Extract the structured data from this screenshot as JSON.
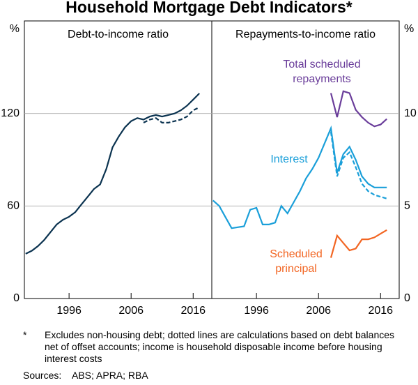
{
  "title": "Household Mortgage Debt Indicators*",
  "footnote": {
    "marker": "*",
    "text": "Excludes non-housing debt; dotted lines are calculations based on debt balances net of offset accounts; income is household disposable income before housing interest costs"
  },
  "sources": {
    "label": "Sources:",
    "text": "ABS; APRA; RBA"
  },
  "chart_data": [
    {
      "type": "line",
      "title": "Debt-to-income ratio",
      "y_unit": "%",
      "axis_side": "left",
      "x": [
        1989,
        1990,
        1991,
        1992,
        1993,
        1994,
        1995,
        1996,
        1997,
        1998,
        1999,
        2000,
        2001,
        2002,
        2003,
        2004,
        2005,
        2006,
        2007,
        2008,
        2009,
        2010,
        2011,
        2012,
        2013,
        2014,
        2015,
        2016,
        2017
      ],
      "xlim": [
        1988.8,
        2019
      ],
      "xticks": [
        1996,
        2006,
        2016
      ],
      "ylim": [
        0,
        180
      ],
      "yticks": [
        0,
        60,
        120
      ],
      "grid": true,
      "series": [
        {
          "color": "#0b3350",
          "dash": false,
          "values": [
            29,
            31,
            34,
            38,
            43,
            48,
            51,
            53,
            56,
            61,
            66,
            71,
            74,
            84,
            98,
            105,
            111,
            115,
            117,
            116,
            118,
            119,
            118,
            119,
            120,
            122,
            125,
            129,
            133
          ]
        },
        {
          "color": "#0b3350",
          "dash": true,
          "values": [
            null,
            null,
            null,
            null,
            null,
            null,
            null,
            null,
            null,
            null,
            null,
            null,
            null,
            null,
            null,
            null,
            null,
            null,
            null,
            114,
            116,
            117,
            114,
            114,
            115,
            116,
            118,
            122,
            124
          ]
        }
      ]
    },
    {
      "type": "line",
      "title": "Repayments-to-income ratio",
      "y_unit": "%",
      "axis_side": "right",
      "x": [
        1989,
        1990,
        1991,
        1992,
        1993,
        1994,
        1995,
        1996,
        1997,
        1998,
        1999,
        2000,
        2001,
        2002,
        2003,
        2004,
        2005,
        2006,
        2007,
        2008,
        2009,
        2010,
        2011,
        2012,
        2013,
        2014,
        2015,
        2016,
        2017
      ],
      "xlim": [
        1988.8,
        2019
      ],
      "xticks": [
        1996,
        2006,
        2016
      ],
      "ylim": [
        0,
        15
      ],
      "yticks": [
        0,
        5,
        10
      ],
      "grid": true,
      "series": [
        {
          "color": "#1a9fd9",
          "dash": false,
          "values": [
            5.3,
            5.0,
            4.4,
            3.8,
            3.85,
            3.9,
            4.8,
            4.9,
            4.0,
            4.0,
            4.1,
            5.0,
            4.6,
            5.2,
            5.8,
            6.5,
            7.0,
            7.6,
            8.4,
            9.2,
            6.8,
            7.8,
            8.2,
            7.5,
            6.6,
            6.2,
            6.0,
            6.0,
            6.0
          ]
        },
        {
          "color": "#1a9fd9",
          "dash": true,
          "values": [
            null,
            null,
            null,
            null,
            null,
            null,
            null,
            null,
            null,
            null,
            null,
            null,
            null,
            null,
            null,
            null,
            null,
            null,
            null,
            9.0,
            6.6,
            7.6,
            7.9,
            7.1,
            6.2,
            5.8,
            5.6,
            5.5,
            5.4
          ]
        },
        {
          "color": "#6a3d9a",
          "dash": false,
          "values": [
            null,
            null,
            null,
            null,
            null,
            null,
            null,
            null,
            null,
            null,
            null,
            null,
            null,
            null,
            null,
            null,
            null,
            null,
            null,
            11.1,
            9.8,
            11.2,
            11.1,
            10.2,
            9.8,
            9.5,
            9.3,
            9.4,
            9.7
          ]
        },
        {
          "color": "#f26522",
          "dash": false,
          "values": [
            null,
            null,
            null,
            null,
            null,
            null,
            null,
            null,
            null,
            null,
            null,
            null,
            null,
            null,
            null,
            null,
            null,
            null,
            null,
            2.2,
            3.4,
            3.0,
            2.6,
            2.7,
            3.2,
            3.2,
            3.3,
            3.5,
            3.7
          ]
        }
      ],
      "annotations": [
        {
          "lines": [
            "Total scheduled",
            "repayments"
          ],
          "color": "#6a3d9a"
        },
        {
          "lines": [
            "Interest"
          ],
          "color": "#1a9fd9"
        },
        {
          "lines": [
            "Scheduled",
            "principal"
          ],
          "color": "#f26522"
        }
      ]
    }
  ]
}
